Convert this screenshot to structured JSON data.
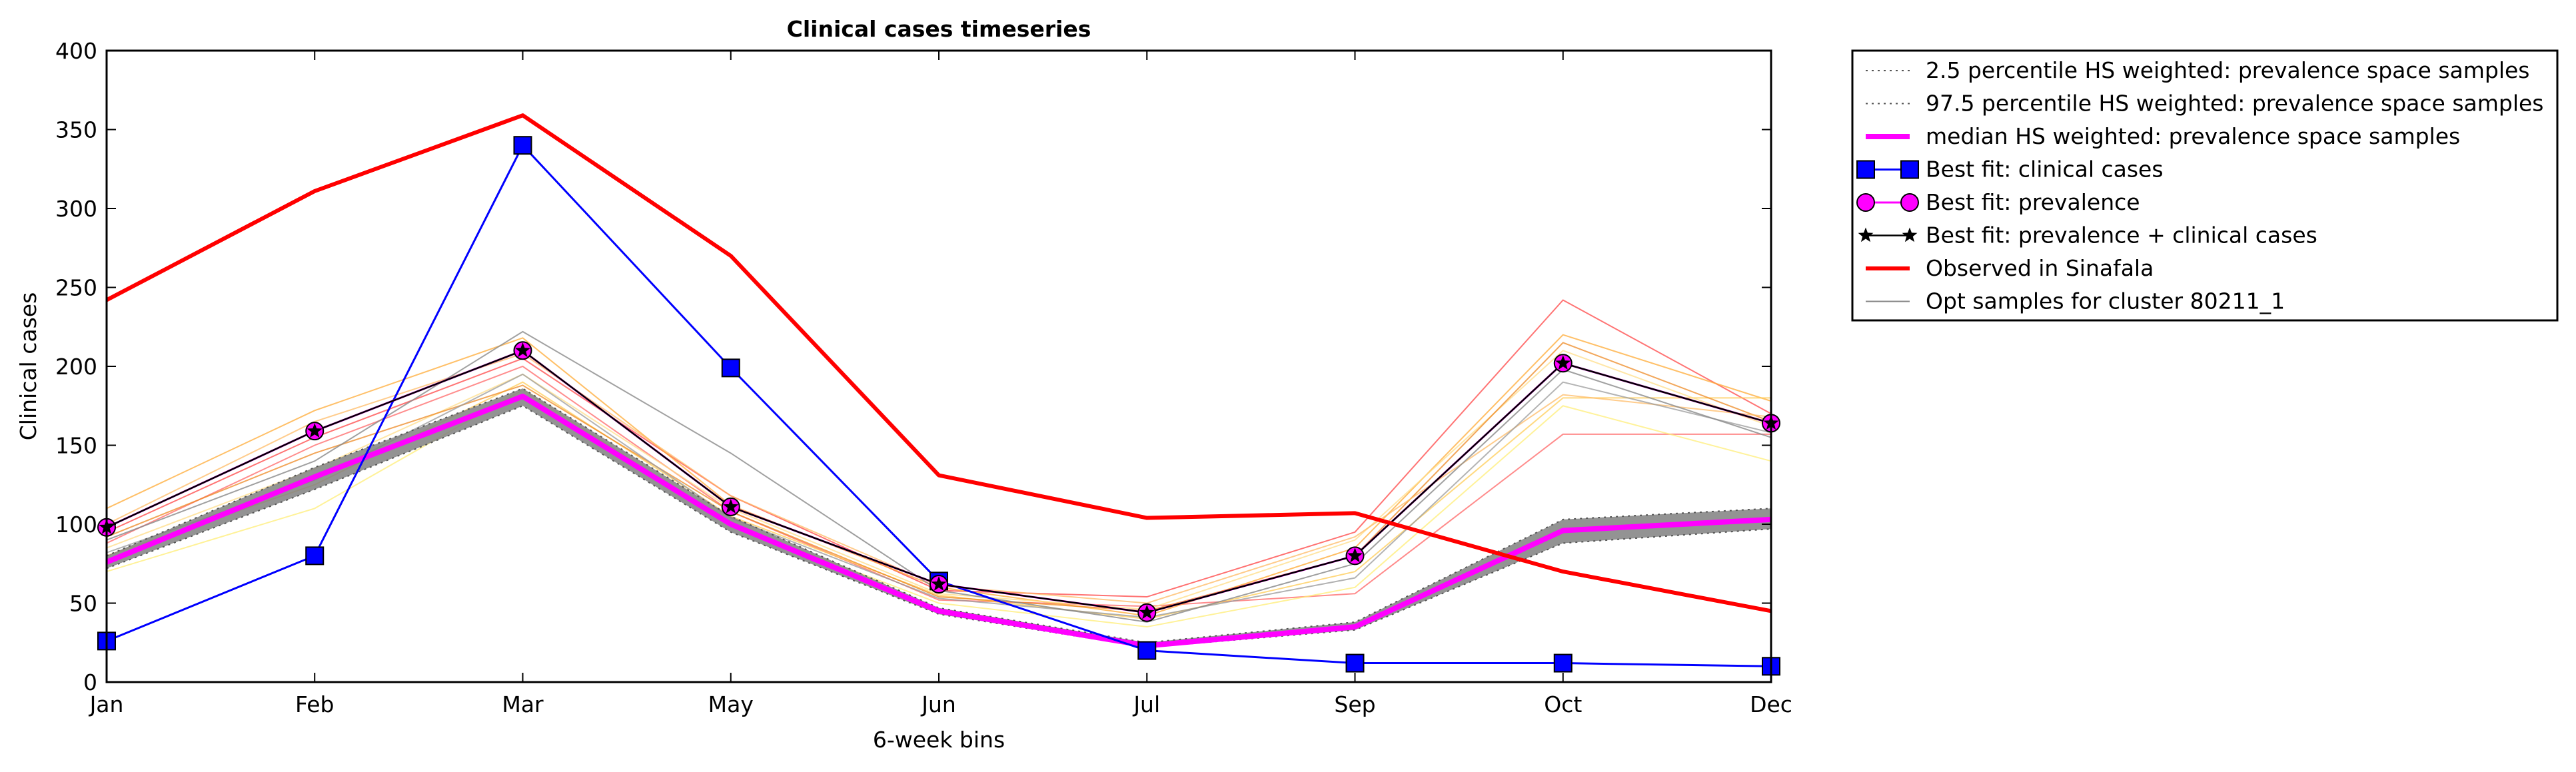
{
  "chart_data": {
    "type": "line",
    "title": "Clinical cases timeseries",
    "xlabel": "6-week bins",
    "ylabel": "Clinical cases",
    "categories": [
      "Jan",
      "Feb",
      "Mar",
      "May",
      "Jun",
      "Jul",
      "Sep",
      "Oct",
      "Dec"
    ],
    "ylim": [
      0,
      400
    ],
    "yticks": [
      0,
      50,
      100,
      150,
      200,
      250,
      300,
      350,
      400
    ],
    "grid": false,
    "legend_position": "outside-right",
    "series": [
      {
        "name": "2.5 percentile HS weighted: prevalence space samples",
        "style": "dotted",
        "color": "#555555",
        "values": [
          72,
          122,
          175,
          95,
          43,
          22,
          33,
          88,
          97
        ]
      },
      {
        "name": "97.5 percentile HS weighted: prevalence space samples",
        "style": "dotted",
        "color": "#555555",
        "values": [
          80,
          136,
          186,
          105,
          47,
          25,
          38,
          103,
          110
        ]
      },
      {
        "name": "median HS weighted: prevalence space samples",
        "style": "solid",
        "color": "#ff00ff",
        "values": [
          76,
          130,
          181,
          100,
          45,
          23,
          35,
          96,
          103
        ]
      },
      {
        "name": "Best fit: clinical cases",
        "style": "solid",
        "color": "#0000ff",
        "marker": "square",
        "values": [
          26,
          80,
          340,
          199,
          64,
          20,
          12,
          12,
          10
        ]
      },
      {
        "name": "Best fit: prevalence",
        "style": "solid",
        "color": "#ff00ff",
        "marker": "circle",
        "values": [
          98,
          159,
          210,
          111,
          62,
          44,
          80,
          202,
          164
        ]
      },
      {
        "name": "Best fit: prevalence + clinical cases",
        "style": "solid",
        "color": "#000000",
        "marker": "star",
        "values": [
          98,
          159,
          210,
          111,
          62,
          44,
          80,
          202,
          164
        ]
      },
      {
        "name": "Observed in Sinafala",
        "style": "solid",
        "color": "#ff0000",
        "values": [
          242,
          311,
          359,
          270,
          131,
          104,
          107,
          70,
          45
        ]
      },
      {
        "name": "Opt samples for cluster 80211_1",
        "style": "solid",
        "color": "#888888",
        "values": [
          90,
          140,
          222,
          145,
          58,
          38,
          75,
          198,
          155
        ]
      }
    ],
    "sample_lines": [
      {
        "color": "#ff4444",
        "values": [
          95,
          155,
          205,
          118,
          58,
          54,
          95,
          242,
          170
        ]
      },
      {
        "color": "#ff6666",
        "values": [
          88,
          150,
          200,
          108,
          52,
          48,
          56,
          157,
          157
        ]
      },
      {
        "color": "#ffaa33",
        "values": [
          110,
          172,
          218,
          112,
          60,
          42,
          85,
          220,
          178
        ]
      },
      {
        "color": "#ffcc55",
        "values": [
          80,
          125,
          190,
          105,
          55,
          40,
          70,
          180,
          180
        ]
      },
      {
        "color": "#ffee77",
        "values": [
          70,
          110,
          185,
          100,
          50,
          35,
          60,
          175,
          140
        ]
      },
      {
        "color": "#ffdd88",
        "values": [
          85,
          135,
          195,
          110,
          56,
          46,
          90,
          210,
          162
        ]
      },
      {
        "color": "#ee8822",
        "values": [
          92,
          145,
          188,
          108,
          54,
          45,
          80,
          215,
          165
        ]
      },
      {
        "color": "#ffbb66",
        "values": [
          100,
          165,
          208,
          118,
          61,
          50,
          92,
          182,
          168
        ]
      },
      {
        "color": "#999999",
        "values": [
          82,
          128,
          195,
          104,
          53,
          41,
          66,
          190,
          158
        ]
      }
    ]
  }
}
